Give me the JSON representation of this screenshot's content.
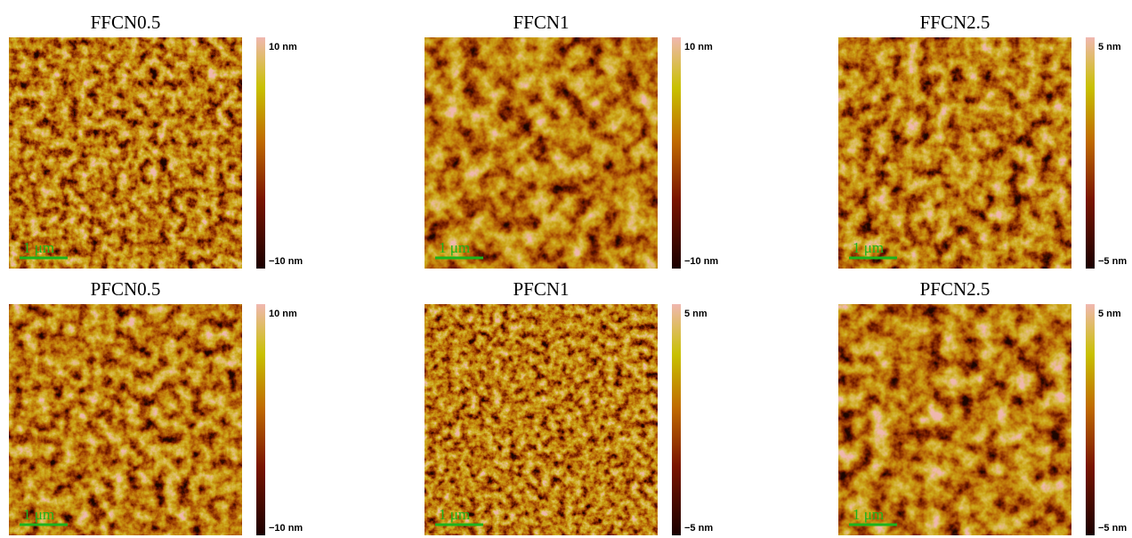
{
  "panels": [
    {
      "title": "FFCN0.5",
      "colorbar_max": "10 nm",
      "colorbar_min": "−10 nm",
      "scale_bar": "1 μm"
    },
    {
      "title": "FFCN1",
      "colorbar_max": "10 nm",
      "colorbar_min": "−10 nm",
      "scale_bar": "1 μm"
    },
    {
      "title": "FFCN2.5",
      "colorbar_max": "5 nm",
      "colorbar_min": "−5 nm",
      "scale_bar": "1 μm"
    },
    {
      "title": "PFCN0.5",
      "colorbar_max": "10 nm",
      "colorbar_min": "−10 nm",
      "scale_bar": "1 μm"
    },
    {
      "title": "PFCN1",
      "colorbar_max": "5 nm",
      "colorbar_min": "−5 nm",
      "scale_bar": "1 μm"
    },
    {
      "title": "PFCN2.5",
      "colorbar_max": "5 nm",
      "colorbar_min": "−5 nm",
      "scale_bar": "1 μm"
    }
  ]
}
